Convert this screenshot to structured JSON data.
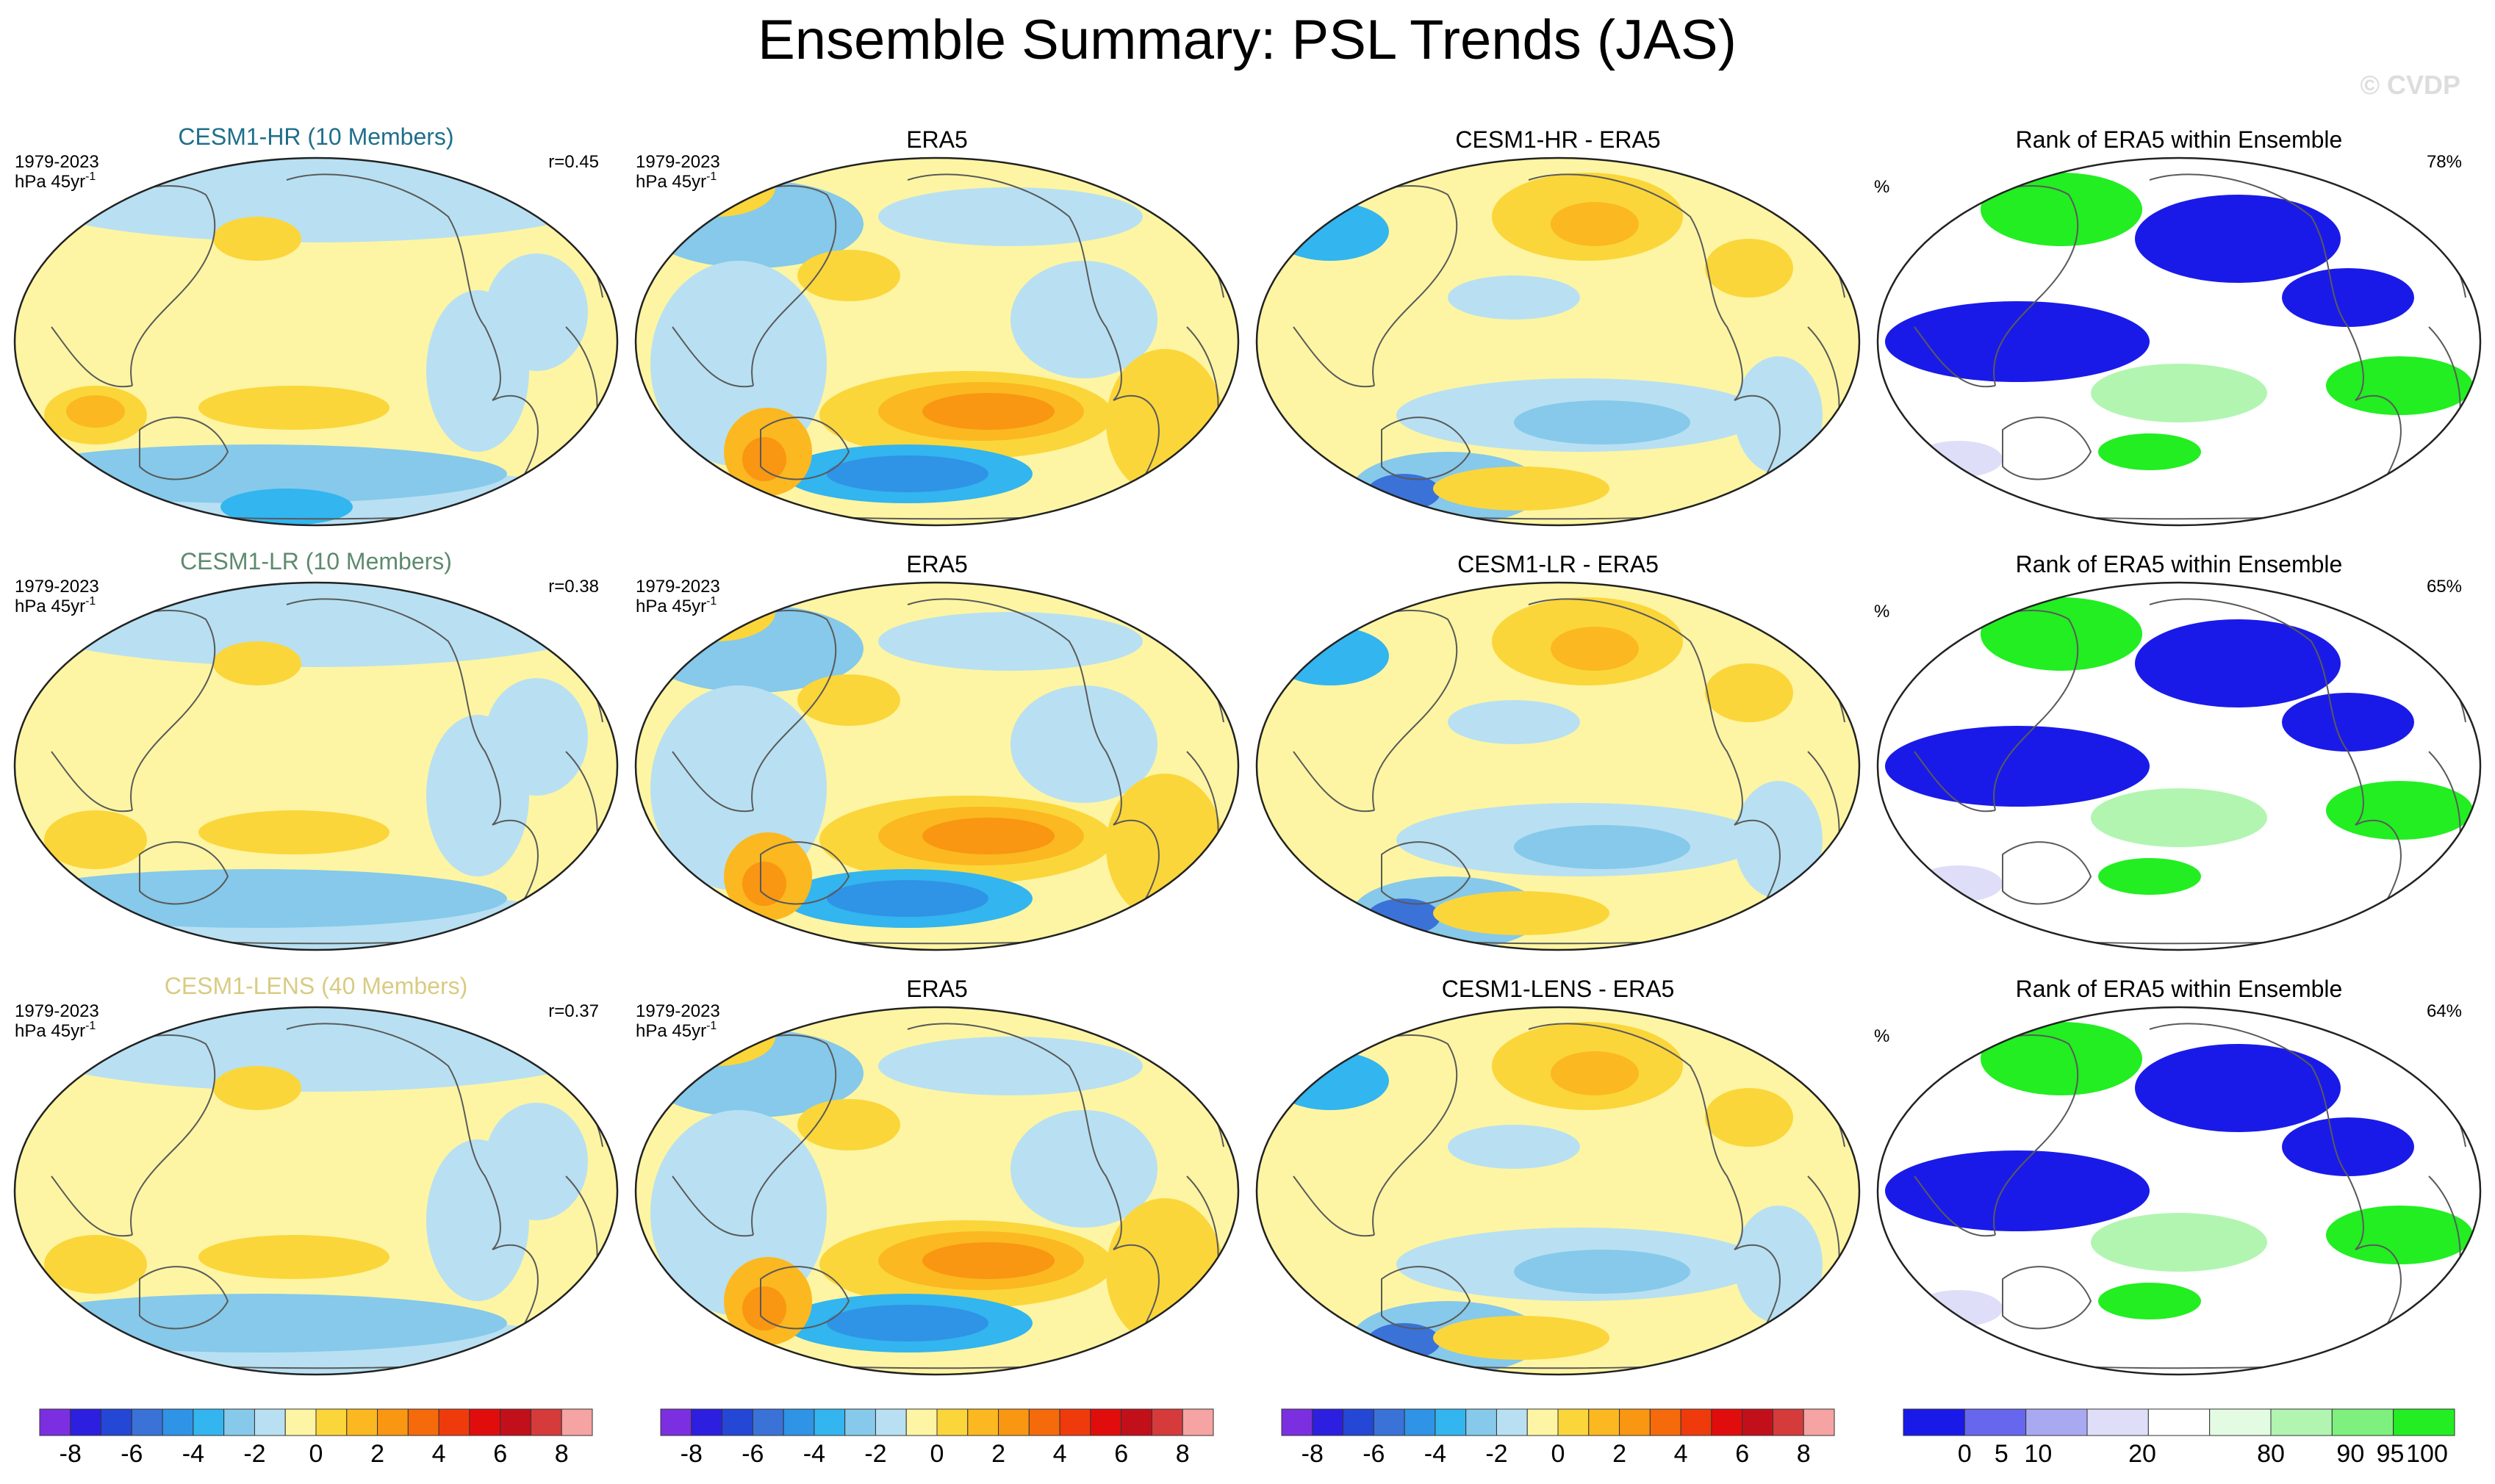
{
  "figure": {
    "title": "Ensemble Summary: PSL Trends (JAS)",
    "watermark": "© CVDP"
  },
  "chart_data": {
    "type": "map",
    "variable": "PSL trend",
    "season": "JAS",
    "rows": [
      {
        "ensemble": {
          "title": "CESM1-HR (10 Members)",
          "title_color": "#1f6f8b",
          "period": "1979-2023",
          "units": "hPa 45yr",
          "units_sup": "-1",
          "stat": "r=0.45"
        },
        "obs": {
          "title": "ERA5",
          "period": "1979-2023",
          "units": "hPa 45yr",
          "units_sup": "-1"
        },
        "diff": {
          "title": "CESM1-HR - ERA5"
        },
        "rank": {
          "title": "Rank of ERA5 within Ensemble",
          "unit": "%",
          "stat": "78%"
        }
      },
      {
        "ensemble": {
          "title": "CESM1-LR (10 Members)",
          "title_color": "#5e8a6e",
          "period": "1979-2023",
          "units": "hPa 45yr",
          "units_sup": "-1",
          "stat": "r=0.38"
        },
        "obs": {
          "title": "ERA5",
          "period": "1979-2023",
          "units": "hPa 45yr",
          "units_sup": "-1"
        },
        "diff": {
          "title": "CESM1-LR - ERA5"
        },
        "rank": {
          "title": "Rank of ERA5 within Ensemble",
          "unit": "%",
          "stat": "65%"
        }
      },
      {
        "ensemble": {
          "title": "CESM1-LENS (40 Members)",
          "title_color": "#d9cb82",
          "period": "1979-2023",
          "units": "hPa 45yr",
          "units_sup": "-1",
          "stat": "r=0.37"
        },
        "obs": {
          "title": "ERA5",
          "period": "1979-2023",
          "units": "hPa 45yr",
          "units_sup": "-1"
        },
        "diff": {
          "title": "CESM1-LENS - ERA5"
        },
        "rank": {
          "title": "Rank of ERA5 within Ensemble",
          "unit": "%",
          "stat": "64%"
        }
      }
    ],
    "trend_colorbar": {
      "colors": [
        "#7b2fe0",
        "#2d1fe0",
        "#2447d6",
        "#3a72d8",
        "#2f93e6",
        "#33b5ef",
        "#86c9ea",
        "#b8e0f2",
        "#fdf5a3",
        "#fbd63a",
        "#fbb820",
        "#f99612",
        "#f56a0b",
        "#ef3b0c",
        "#e10d0d",
        "#c2101a",
        "#d53b3b",
        "#f5a3a3"
      ],
      "tick_labels": [
        "-8",
        "-6",
        "-4",
        "-2",
        "0",
        "2",
        "4",
        "6",
        "8"
      ],
      "tick_values": [
        -8,
        -6,
        -4,
        -2,
        0,
        2,
        4,
        6,
        8
      ]
    },
    "rank_colorbar": {
      "colors": [
        "#1a1ae8",
        "#6666ee",
        "#a9a9f2",
        "#dedef9",
        "#ffffff",
        "#e2fbe2",
        "#b1f5b1",
        "#7df07d",
        "#22ee22"
      ],
      "tick_labels": [
        "0",
        "5",
        "10",
        "20",
        "80",
        "90",
        "95",
        "100"
      ],
      "boundaries": [
        0,
        5,
        10,
        20,
        80,
        90,
        95,
        100
      ]
    }
  }
}
